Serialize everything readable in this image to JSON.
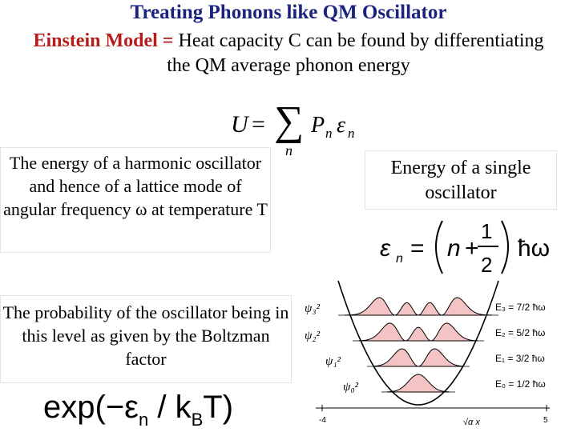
{
  "slide": {
    "title": "Treating Phonons like QM Oscillator",
    "subtitle_highlight": "Einstein Model =",
    "subtitle_rest": " Heat capacity C can be found by differentiating the QM average phonon energy"
  },
  "equations": {
    "U_lhs": "U",
    "U_eq": "=",
    "sum": "∑",
    "sum_index": "n",
    "P": "P",
    "P_sub": "n",
    "eps": "ε",
    "eps_sub": "n",
    "en_lhs": "ε",
    "en_sub": "n",
    "en_eq": "=",
    "en_n": "n",
    "en_plus": "+",
    "en_num": "1",
    "en_den": "2",
    "en_hw": "ħω",
    "exp_text": "exp(−ε",
    "exp_sub": "n",
    "exp_div": " / k",
    "exp_sub2": "B",
    "exp_end": "T)"
  },
  "boxes": {
    "energy": "The energy of a harmonic oscillator and hence of a lattice mode of angular frequency ω at temperature T",
    "probability": "The probability of the oscillator being in this level as given by the Boltzman factor",
    "single": "Energy of a single oscillator"
  },
  "diagram": {
    "psi_labels": [
      "ψ₃²",
      "ψ₂²",
      "ψ₁²",
      "ψ₀²"
    ],
    "energy_labels": [
      "E₃ = 7/2 ħω",
      "E₂ = 5/2 ħω",
      "E₁ = 3/2 ħω",
      "E₀ = 1/2 ħω"
    ],
    "x_tick_left": "-4",
    "x_tick_right": "5",
    "x_axis_label": "√α x",
    "colors": {
      "fill": "#f4c4c4",
      "curve": "#000000"
    }
  }
}
